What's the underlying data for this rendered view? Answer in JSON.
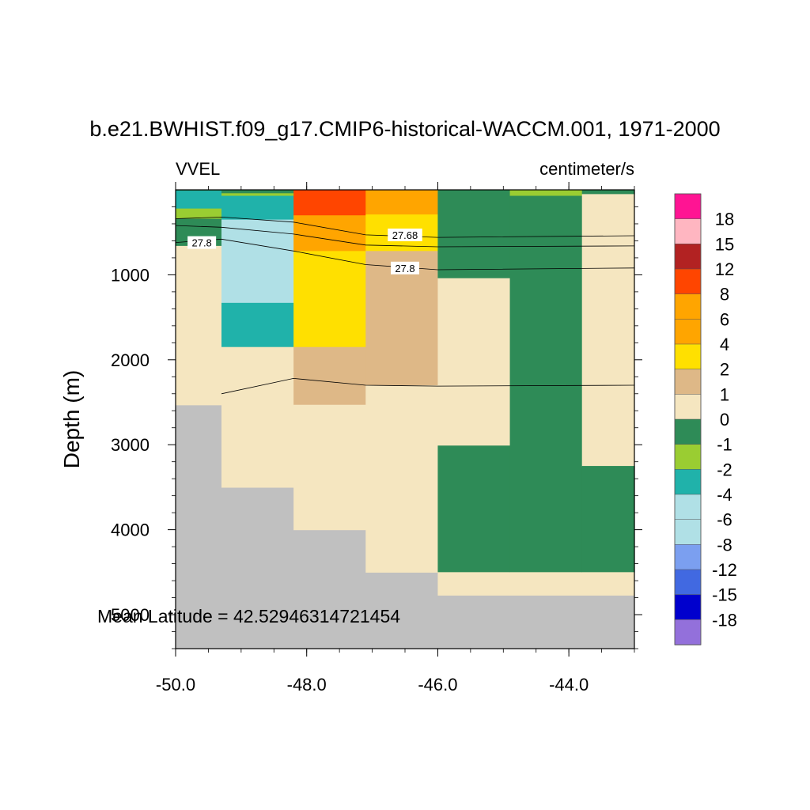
{
  "chart_data": {
    "type": "heatmap",
    "title": "b.e21.BWHIST.f09_g17.CMIP6-historical-WACCM.001, 1971-2000",
    "variable_label": "VVEL",
    "units_label": "centimeter/s",
    "ylabel": "Depth (m)",
    "xlabel": "",
    "annotation": "Mean Latitude = 42.52946314721454",
    "xlim": [
      -50.0,
      -43.0
    ],
    "ylim": [
      5400,
      0
    ],
    "x_ticks": [
      -50.0,
      -48.0,
      -46.0,
      -44.0
    ],
    "x_tick_labels": [
      "-50.0",
      "-48.0",
      "-46.0",
      "-44.0"
    ],
    "y_ticks": [
      1000,
      2000,
      3000,
      4000,
      5000
    ],
    "y_tick_labels": [
      "1000",
      "2000",
      "3000",
      "4000",
      "5000"
    ],
    "grid": false,
    "legend_position": "right",
    "colorbar": {
      "labels": [
        "18",
        "15",
        "12",
        "8",
        "6",
        "4",
        "2",
        "1",
        "0",
        "-1",
        "-2",
        "-4",
        "-6",
        "-8",
        "-12",
        "-15",
        "-18"
      ],
      "colors": [
        "#ff1493",
        "#ffb6c1",
        "#b22222",
        "#ff4500",
        "#ffa500",
        "#ffa500",
        "#ffe000",
        "#deb887",
        "#f5e6c0",
        "#2e8b57",
        "#9acd32",
        "#20b2aa",
        "#b0e0e6",
        "#b0e0e6",
        "#7b9ff0",
        "#4169e1",
        "#0000cd",
        "#9370db"
      ]
    },
    "missing_color": "#c0c0c0",
    "cells": [
      {
        "x0": -50.0,
        "x1": -49.3,
        "y0": 0,
        "y1": 10,
        "color": "#2e8b57"
      },
      {
        "x0": -50.0,
        "x1": -49.3,
        "y0": 10,
        "y1": 220,
        "color": "#20b2aa"
      },
      {
        "x0": -50.0,
        "x1": -49.3,
        "y0": 220,
        "y1": 340,
        "color": "#9acd32"
      },
      {
        "x0": -50.0,
        "x1": -49.3,
        "y0": 340,
        "y1": 660,
        "color": "#2e8b57"
      },
      {
        "x0": -50.0,
        "x1": -49.3,
        "y0": 660,
        "y1": 2530,
        "color": "#f5e6c0"
      },
      {
        "x0": -49.3,
        "x1": -48.2,
        "y0": 0,
        "y1": 40,
        "color": "#2e8b57"
      },
      {
        "x0": -49.3,
        "x1": -48.2,
        "y0": 40,
        "y1": 70,
        "color": "#9acd32"
      },
      {
        "x0": -49.3,
        "x1": -48.2,
        "y0": 70,
        "y1": 350,
        "color": "#20b2aa"
      },
      {
        "x0": -49.3,
        "x1": -48.2,
        "y0": 350,
        "y1": 1330,
        "color": "#b0e0e6"
      },
      {
        "x0": -49.3,
        "x1": -48.2,
        "y0": 1330,
        "y1": 1850,
        "color": "#20b2aa"
      },
      {
        "x0": -49.3,
        "x1": -48.2,
        "y0": 1850,
        "y1": 3500,
        "color": "#f5e6c0"
      },
      {
        "x0": -48.2,
        "x1": -47.1,
        "y0": 0,
        "y1": 300,
        "color": "#ff4500"
      },
      {
        "x0": -48.2,
        "x1": -47.1,
        "y0": 300,
        "y1": 720,
        "color": "#ffa500"
      },
      {
        "x0": -48.2,
        "x1": -47.1,
        "y0": 720,
        "y1": 1850,
        "color": "#ffe000"
      },
      {
        "x0": -48.2,
        "x1": -47.1,
        "y0": 1850,
        "y1": 2530,
        "color": "#deb887"
      },
      {
        "x0": -48.2,
        "x1": -47.1,
        "y0": 2530,
        "y1": 4000,
        "color": "#f5e6c0"
      },
      {
        "x0": -47.1,
        "x1": -46.0,
        "y0": 0,
        "y1": 290,
        "color": "#ffa500"
      },
      {
        "x0": -47.1,
        "x1": -46.0,
        "y0": 290,
        "y1": 720,
        "color": "#ffe000"
      },
      {
        "x0": -47.1,
        "x1": -46.0,
        "y0": 720,
        "y1": 2300,
        "color": "#deb887"
      },
      {
        "x0": -47.1,
        "x1": -46.0,
        "y0": 2300,
        "y1": 4500,
        "color": "#f5e6c0"
      },
      {
        "x0": -46.0,
        "x1": -44.9,
        "y0": 0,
        "y1": 1040,
        "color": "#2e8b57"
      },
      {
        "x0": -46.0,
        "x1": -44.9,
        "y0": 1040,
        "y1": 3010,
        "color": "#f5e6c0"
      },
      {
        "x0": -46.0,
        "x1": -44.9,
        "y0": 3010,
        "y1": 4500,
        "color": "#2e8b57"
      },
      {
        "x0": -46.0,
        "x1": -44.9,
        "y0": 4500,
        "y1": 4770,
        "color": "#f5e6c0"
      },
      {
        "x0": -44.9,
        "x1": -43.8,
        "y0": 0,
        "y1": 70,
        "color": "#9acd32"
      },
      {
        "x0": -44.9,
        "x1": -43.8,
        "y0": 70,
        "y1": 4500,
        "color": "#2e8b57"
      },
      {
        "x0": -44.9,
        "x1": -43.8,
        "y0": 4500,
        "y1": 4770,
        "color": "#f5e6c0"
      },
      {
        "x0": -43.8,
        "x1": -43.0,
        "y0": 0,
        "y1": 50,
        "color": "#2e8b57"
      },
      {
        "x0": -43.8,
        "x1": -43.0,
        "y0": 50,
        "y1": 3250,
        "color": "#f5e6c0"
      },
      {
        "x0": -43.8,
        "x1": -43.0,
        "y0": 3250,
        "y1": 4500,
        "color": "#2e8b57"
      },
      {
        "x0": -43.8,
        "x1": -43.0,
        "y0": 4500,
        "y1": 4770,
        "color": "#f5e6c0"
      }
    ],
    "contours": [
      {
        "points": [
          [
            -50.0,
            340
          ],
          [
            -49.3,
            320
          ],
          [
            -48.2,
            380
          ],
          [
            -47.1,
            530
          ],
          [
            -46.0,
            560
          ],
          [
            -43.0,
            540
          ]
        ]
      },
      {
        "points": [
          [
            -50.0,
            420
          ],
          [
            -49.3,
            440
          ],
          [
            -48.2,
            520
          ],
          [
            -47.1,
            650
          ],
          [
            -46.0,
            670
          ],
          [
            -43.0,
            660
          ]
        ]
      },
      {
        "points": [
          [
            -50.0,
            620
          ],
          [
            -49.3,
            580
          ],
          [
            -48.2,
            720
          ],
          [
            -47.1,
            880
          ],
          [
            -46.0,
            940
          ],
          [
            -43.0,
            920
          ]
        ]
      },
      {
        "points": [
          [
            -49.3,
            2400
          ],
          [
            -48.2,
            2220
          ],
          [
            -47.1,
            2300
          ],
          [
            -46.0,
            2310
          ],
          [
            -43.0,
            2300
          ]
        ]
      }
    ],
    "contour_labels": [
      {
        "text": "27.8",
        "x": -49.6,
        "y": 620
      },
      {
        "text": "27.68",
        "x": -46.5,
        "y": 530
      },
      {
        "text": "27.8",
        "x": -46.5,
        "y": 920
      }
    ]
  }
}
